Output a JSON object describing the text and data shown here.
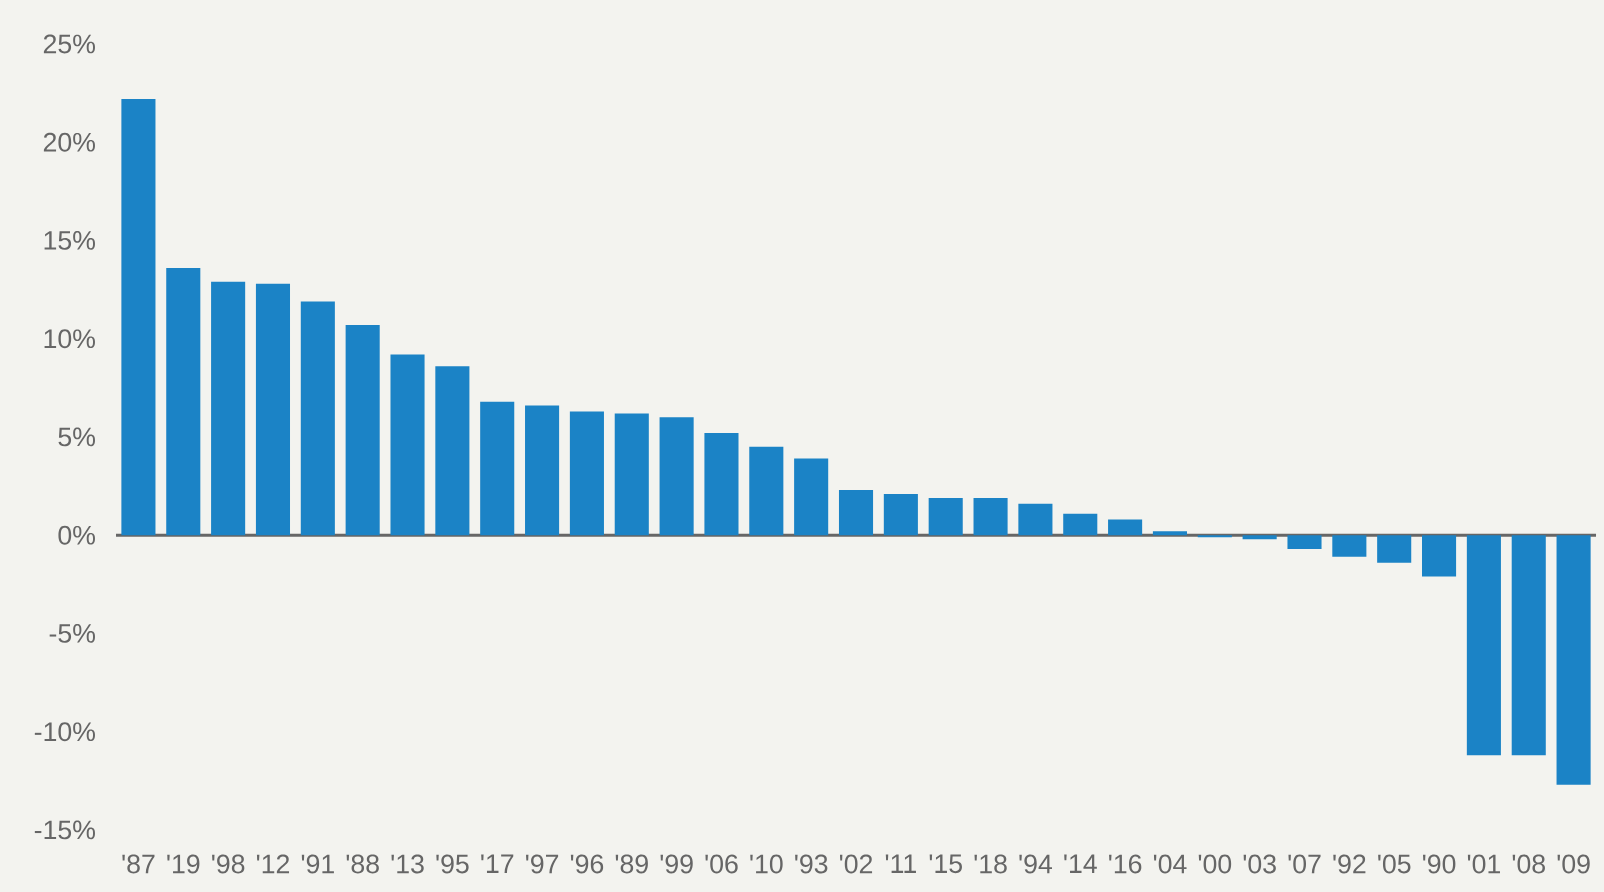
{
  "chart_data": {
    "type": "bar",
    "categories": [
      "'87",
      "'19",
      "'98",
      "'12",
      "'91",
      "'88",
      "'13",
      "'95",
      "'17",
      "'97",
      "'96",
      "'89",
      "'99",
      "'06",
      "'10",
      "'93",
      "'02",
      "'11",
      "'15",
      "'18",
      "'94",
      "'14",
      "'16",
      "'04",
      "'00",
      "'03",
      "'07",
      "'92",
      "'05",
      "'90",
      "'01",
      "'08",
      "'09"
    ],
    "values": [
      22.2,
      13.6,
      12.9,
      12.8,
      11.9,
      10.7,
      9.2,
      8.6,
      6.8,
      6.6,
      6.3,
      6.2,
      6.0,
      5.2,
      4.5,
      3.9,
      2.3,
      2.1,
      1.9,
      1.9,
      1.6,
      1.1,
      0.8,
      0.2,
      -0.1,
      -0.2,
      -0.7,
      -1.1,
      -1.4,
      -2.1,
      -11.2,
      -11.2,
      -12.7
    ],
    "color": "#1b83c6",
    "ylim": [
      -15,
      25
    ],
    "yticks": [
      {
        "value": -15,
        "label": "-15%"
      },
      {
        "value": -10,
        "label": "-10%"
      },
      {
        "value": -5,
        "label": "-5%"
      },
      {
        "value": 0,
        "label": "0%"
      },
      {
        "value": 5,
        "label": "5%"
      },
      {
        "value": 10,
        "label": "10%"
      },
      {
        "value": 15,
        "label": "15%"
      },
      {
        "value": 20,
        "label": "20%"
      },
      {
        "value": 25,
        "label": "25%"
      }
    ]
  }
}
